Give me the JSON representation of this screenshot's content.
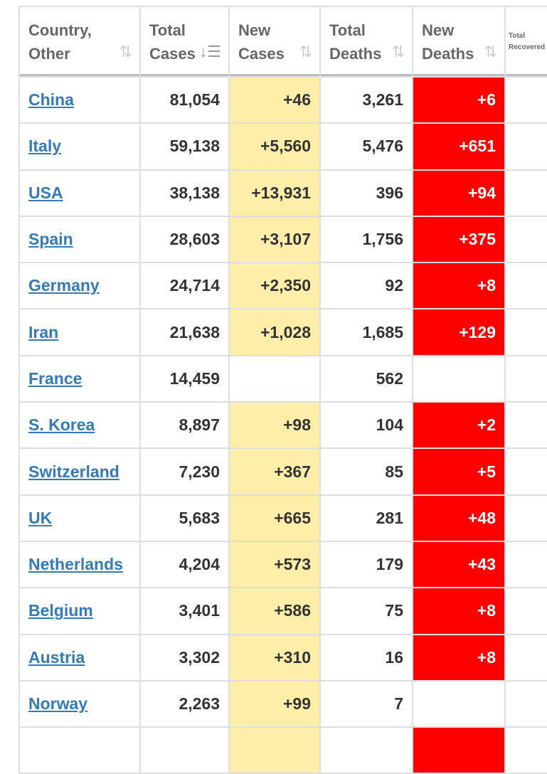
{
  "headers": [
    {
      "line1": "Country,",
      "line2": "Other",
      "sort_icon": "sort-arrows-icon"
    },
    {
      "line1": "Total",
      "line2": "Cases",
      "sort_icon": "sort-desc-active-icon"
    },
    {
      "line1": "New",
      "line2": "Cases",
      "sort_icon": "sort-arrows-icon"
    },
    {
      "line1": "Total",
      "line2": "Deaths",
      "sort_icon": "sort-arrows-icon"
    },
    {
      "line1": "New",
      "line2": "Deaths",
      "sort_icon": "sort-arrows-icon"
    },
    {
      "line1": "Total",
      "line2": "Recovered"
    }
  ],
  "colors": {
    "new_cases_bg": "#ffeeaa",
    "new_deaths_bg": "#ff0000",
    "link": "#337ab7"
  },
  "rows": [
    {
      "country": "China",
      "total_cases": "81,054",
      "new_cases": "+46",
      "total_deaths": "3,261",
      "new_deaths": "+6"
    },
    {
      "country": "Italy",
      "total_cases": "59,138",
      "new_cases": "+5,560",
      "total_deaths": "5,476",
      "new_deaths": "+651"
    },
    {
      "country": "USA",
      "total_cases": "38,138",
      "new_cases": "+13,931",
      "total_deaths": "396",
      "new_deaths": "+94"
    },
    {
      "country": "Spain",
      "total_cases": "28,603",
      "new_cases": "+3,107",
      "total_deaths": "1,756",
      "new_deaths": "+375"
    },
    {
      "country": "Germany",
      "total_cases": "24,714",
      "new_cases": "+2,350",
      "total_deaths": "92",
      "new_deaths": "+8"
    },
    {
      "country": "Iran",
      "total_cases": "21,638",
      "new_cases": "+1,028",
      "total_deaths": "1,685",
      "new_deaths": "+129"
    },
    {
      "country": "France",
      "total_cases": "14,459",
      "new_cases": "",
      "total_deaths": "562",
      "new_deaths": ""
    },
    {
      "country": "S. Korea",
      "total_cases": "8,897",
      "new_cases": "+98",
      "total_deaths": "104",
      "new_deaths": "+2"
    },
    {
      "country": "Switzerland",
      "total_cases": "7,230",
      "new_cases": "+367",
      "total_deaths": "85",
      "new_deaths": "+5"
    },
    {
      "country": "UK",
      "total_cases": "5,683",
      "new_cases": "+665",
      "total_deaths": "281",
      "new_deaths": "+48"
    },
    {
      "country": "Netherlands",
      "total_cases": "4,204",
      "new_cases": "+573",
      "total_deaths": "179",
      "new_deaths": "+43"
    },
    {
      "country": "Belgium",
      "total_cases": "3,401",
      "new_cases": "+586",
      "total_deaths": "75",
      "new_deaths": "+8"
    },
    {
      "country": "Austria",
      "total_cases": "3,302",
      "new_cases": "+310",
      "total_deaths": "16",
      "new_deaths": "+8"
    },
    {
      "country": "Norway",
      "total_cases": "2,263",
      "new_cases": "+99",
      "total_deaths": "7",
      "new_deaths": ""
    },
    {
      "country": "",
      "total_cases": "",
      "new_cases": "",
      "total_deaths": "",
      "new_deaths": "partial"
    }
  ]
}
